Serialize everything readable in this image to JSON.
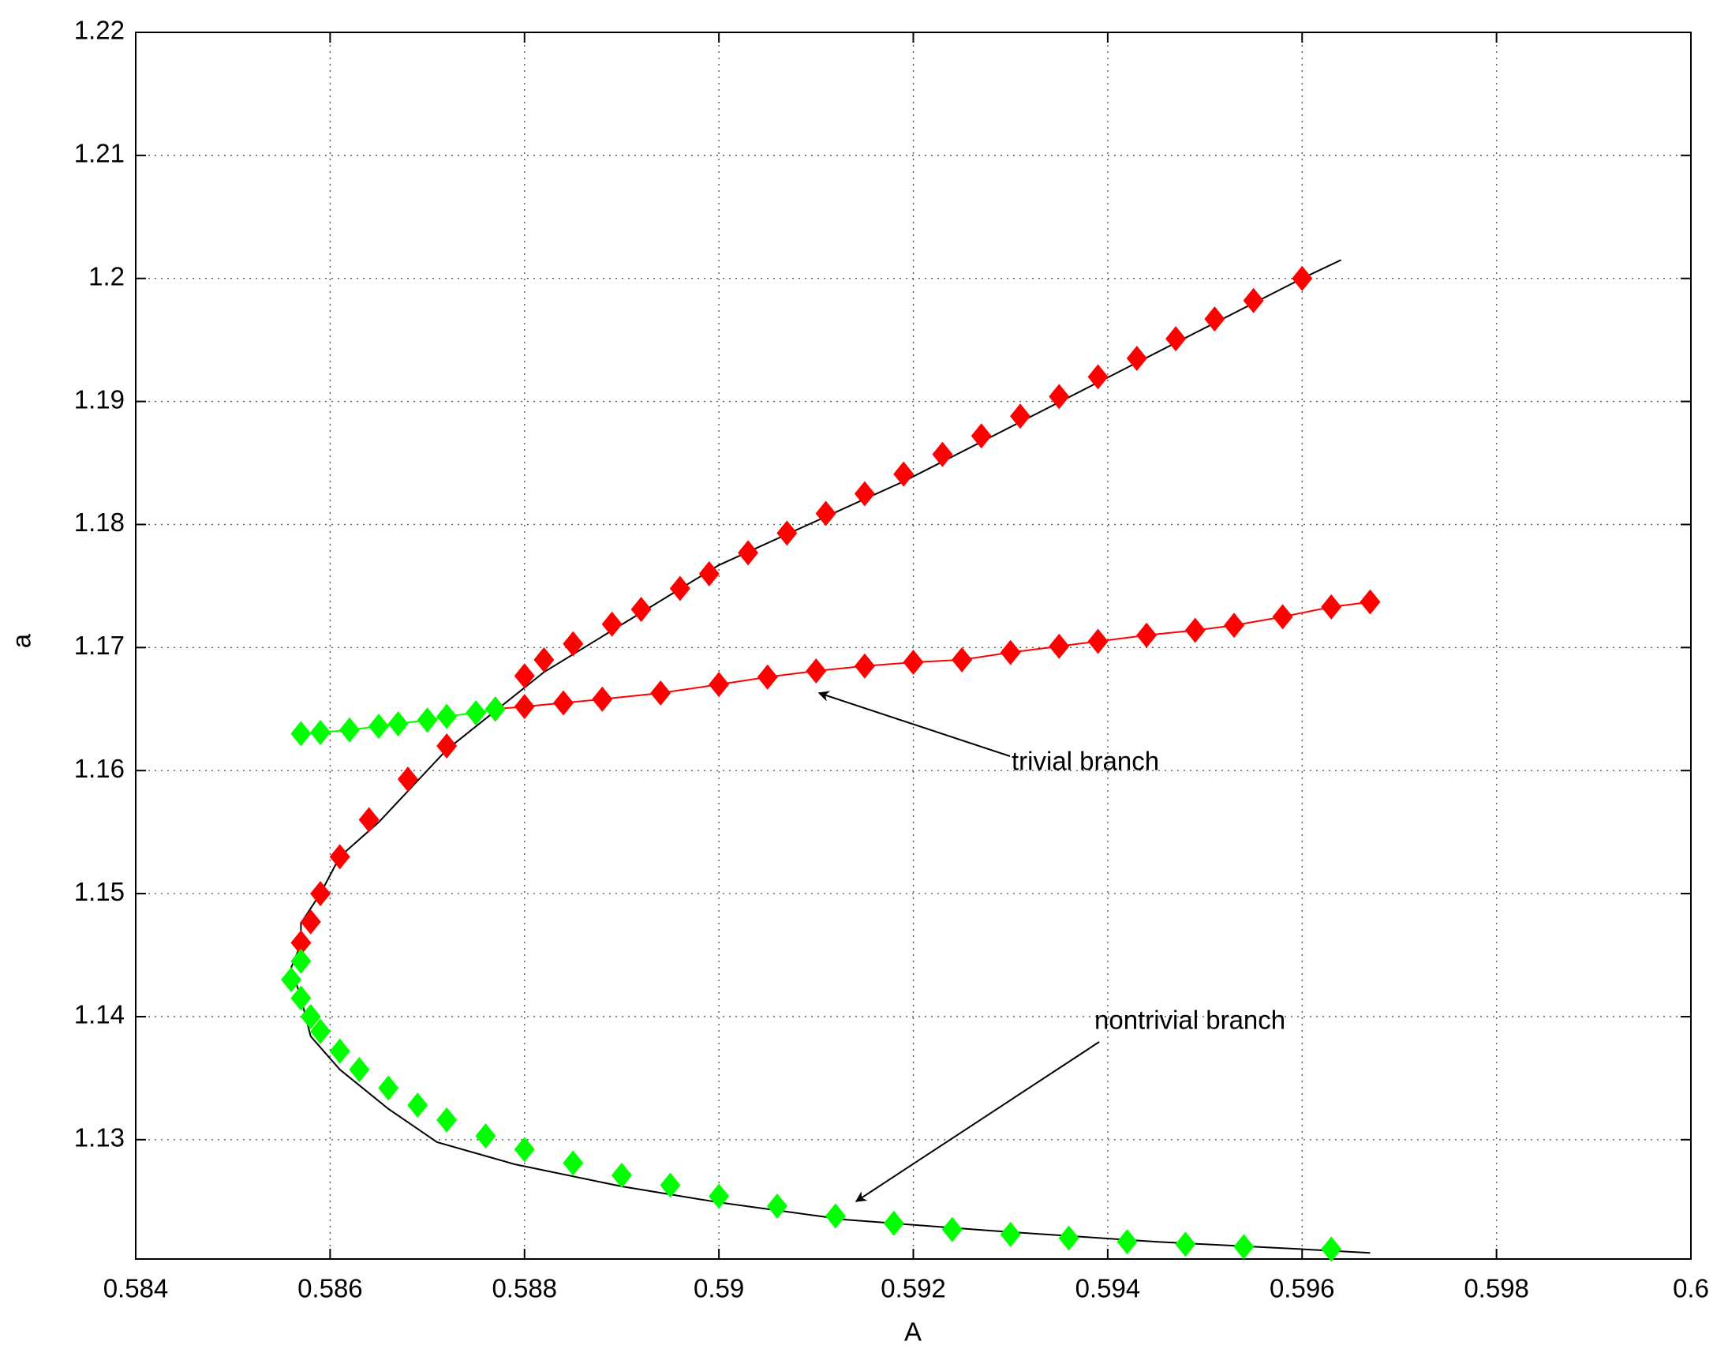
{
  "chart_data": {
    "type": "line",
    "xlabel": "A",
    "ylabel": "a",
    "xlim": [
      0.584,
      0.6
    ],
    "ylim": [
      1.1203,
      1.22
    ],
    "xticks": [
      0.584,
      0.586,
      0.588,
      0.59,
      0.592,
      0.594,
      0.596,
      0.598,
      0.6
    ],
    "yticks": [
      1.13,
      1.14,
      1.15,
      1.16,
      1.17,
      1.18,
      1.19,
      1.2,
      1.21,
      1.22
    ],
    "grid": true,
    "series": [
      {
        "color": "#000000",
        "line": true,
        "x": [
          0.5964,
          0.596,
          0.5919,
          0.59,
          0.5882,
          0.5872,
          0.5865,
          0.5861,
          0.5859,
          0.5857,
          0.5857,
          0.5856,
          0.5857,
          0.5858,
          0.5861,
          0.5866,
          0.5871,
          0.5879,
          0.589,
          0.59,
          0.5913,
          0.5928,
          0.5945,
          0.596,
          0.5967
        ],
        "y": [
          1.2015,
          1.2,
          1.1835,
          1.1767,
          1.168,
          1.1617,
          1.1558,
          1.153,
          1.15,
          1.1476,
          1.1459,
          1.144,
          1.1415,
          1.1384,
          1.1357,
          1.1325,
          1.1298,
          1.128,
          1.1262,
          1.1249,
          1.1235,
          1.1226,
          1.1217,
          1.1211,
          1.1208
        ]
      },
      {
        "color": "#ff0000",
        "line": true,
        "marker": "diamond",
        "x": [
          0.5877,
          0.588,
          0.5884,
          0.5888,
          0.5894,
          0.59,
          0.5905,
          0.591,
          0.5915,
          0.592,
          0.5925,
          0.593,
          0.5935,
          0.5939,
          0.5944,
          0.5949,
          0.5953,
          0.5958,
          0.5963,
          0.5967
        ],
        "y": [
          1.165,
          1.1652,
          1.1655,
          1.1658,
          1.1663,
          1.167,
          1.1676,
          1.1681,
          1.1685,
          1.1688,
          1.169,
          1.1696,
          1.1701,
          1.1705,
          1.171,
          1.1714,
          1.1718,
          1.1725,
          1.1733,
          1.1737
        ]
      },
      {
        "color": "#00ff00",
        "line": true,
        "marker": "diamond",
        "x": [
          0.5857,
          0.5859,
          0.5862,
          0.5865,
          0.5867,
          0.587,
          0.5872,
          0.5875,
          0.5877
        ],
        "y": [
          1.163,
          1.1631,
          1.1633,
          1.1636,
          1.1638,
          1.1641,
          1.1644,
          1.1647,
          1.165
        ]
      },
      {
        "color": "#ff0000",
        "line": false,
        "marker": "diamond",
        "x": [
          0.5857,
          0.5858,
          0.5859,
          0.5861,
          0.5864,
          0.5868,
          0.5872,
          0.588,
          0.5882,
          0.5885,
          0.5889,
          0.5892,
          0.5896,
          0.5899,
          0.5903,
          0.5907,
          0.5911,
          0.5915,
          0.5919,
          0.5923,
          0.5927,
          0.5931,
          0.5935,
          0.5939,
          0.5943,
          0.5947,
          0.5951,
          0.5955,
          0.596
        ],
        "y": [
          1.146,
          1.1477,
          1.15,
          1.153,
          1.156,
          1.1593,
          1.162,
          1.1677,
          1.169,
          1.1703,
          1.1719,
          1.1731,
          1.1748,
          1.176,
          1.1777,
          1.1793,
          1.1809,
          1.1825,
          1.1841,
          1.1857,
          1.1872,
          1.1888,
          1.1904,
          1.192,
          1.1935,
          1.1951,
          1.1967,
          1.1982,
          1.2
        ]
      },
      {
        "color": "#00ff00",
        "line": false,
        "marker": "diamond",
        "x": [
          0.5857,
          0.5856,
          0.5857,
          0.5858,
          0.5859,
          0.5861,
          0.5863,
          0.5866,
          0.5869,
          0.5872,
          0.5876,
          0.588,
          0.5885,
          0.589,
          0.5895,
          0.59,
          0.5906,
          0.5912,
          0.5918,
          0.5924,
          0.593,
          0.5936,
          0.5942,
          0.5948,
          0.5954,
          0.5963
        ],
        "y": [
          1.1445,
          1.143,
          1.1415,
          1.14,
          1.1388,
          1.1372,
          1.1357,
          1.1342,
          1.1328,
          1.1316,
          1.1303,
          1.1292,
          1.1281,
          1.1271,
          1.1263,
          1.1254,
          1.1246,
          1.1238,
          1.1232,
          1.1227,
          1.1223,
          1.122,
          1.1217,
          1.1215,
          1.1213,
          1.1211
        ]
      }
    ],
    "annotations": [
      {
        "text": "trivial branch"
      },
      {
        "text": "nontrivial branch"
      }
    ]
  }
}
